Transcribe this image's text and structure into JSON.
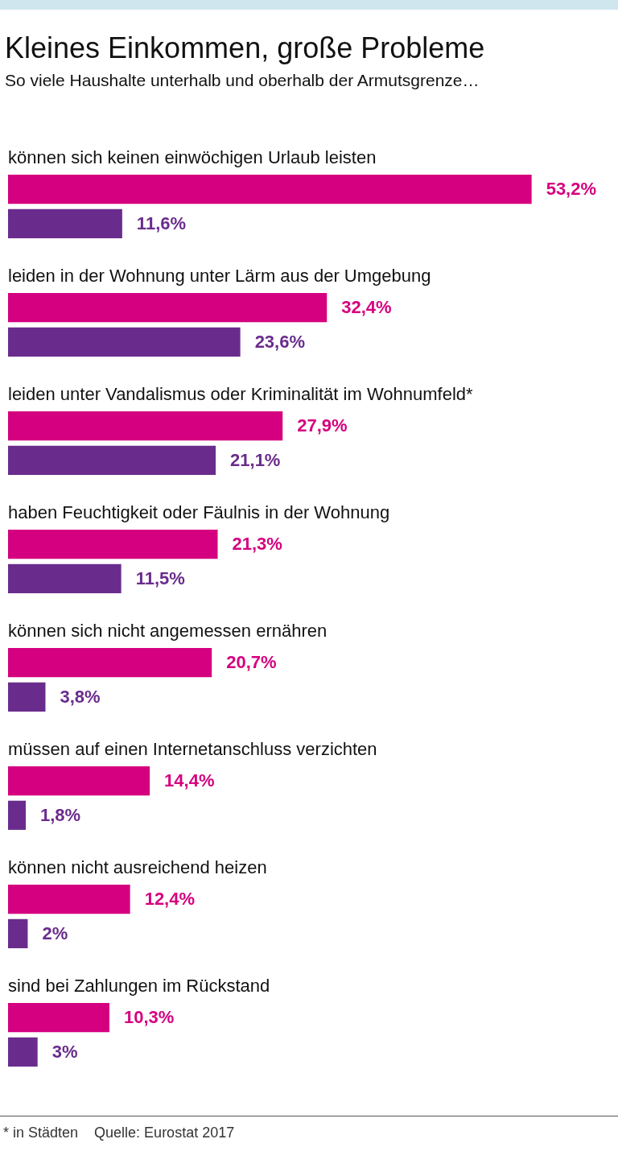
{
  "chart_data": {
    "type": "bar",
    "orientation": "horizontal",
    "title": "Kleines Einkommen, große Probleme",
    "subtitle": "So viele Haushalte unterhalb und oberhalb der Armutsgrenze…",
    "categories": [
      "können sich keinen einwöchigen Urlaub leisten",
      "leiden in der Wohnung unter Lärm aus der Umgebung",
      "leiden unter Vandalismus oder Kriminalität im Wohnumfeld*",
      "haben Feuchtigkeit oder Fäulnis in der Wohnung",
      "können sich nicht angemessen ernähren",
      "müssen auf einen Internetanschluss verzichten",
      "können nicht ausreichend heizen",
      "sind bei Zahlungen im Rückstand"
    ],
    "series": [
      {
        "color": "#d5007f",
        "values": [
          53.2,
          32.4,
          27.9,
          21.3,
          20.7,
          14.4,
          12.4,
          10.3
        ],
        "value_labels": [
          "53,2%",
          "32,4%",
          "27,9%",
          "21,3%",
          "20,7%",
          "14,4%",
          "12,4%",
          "10,3%"
        ]
      },
      {
        "color": "#6a2c8c",
        "values": [
          11.6,
          23.6,
          21.1,
          11.5,
          3.8,
          1.8,
          2,
          3
        ],
        "value_labels": [
          "11,6%",
          "23,6%",
          "21,1%",
          "11,5%",
          "3,8%",
          "1,8%",
          "2%",
          "3%"
        ]
      }
    ],
    "legend": false,
    "annotations": [
      "* in Städten",
      "Quelle: Eurostat 2017"
    ]
  }
}
